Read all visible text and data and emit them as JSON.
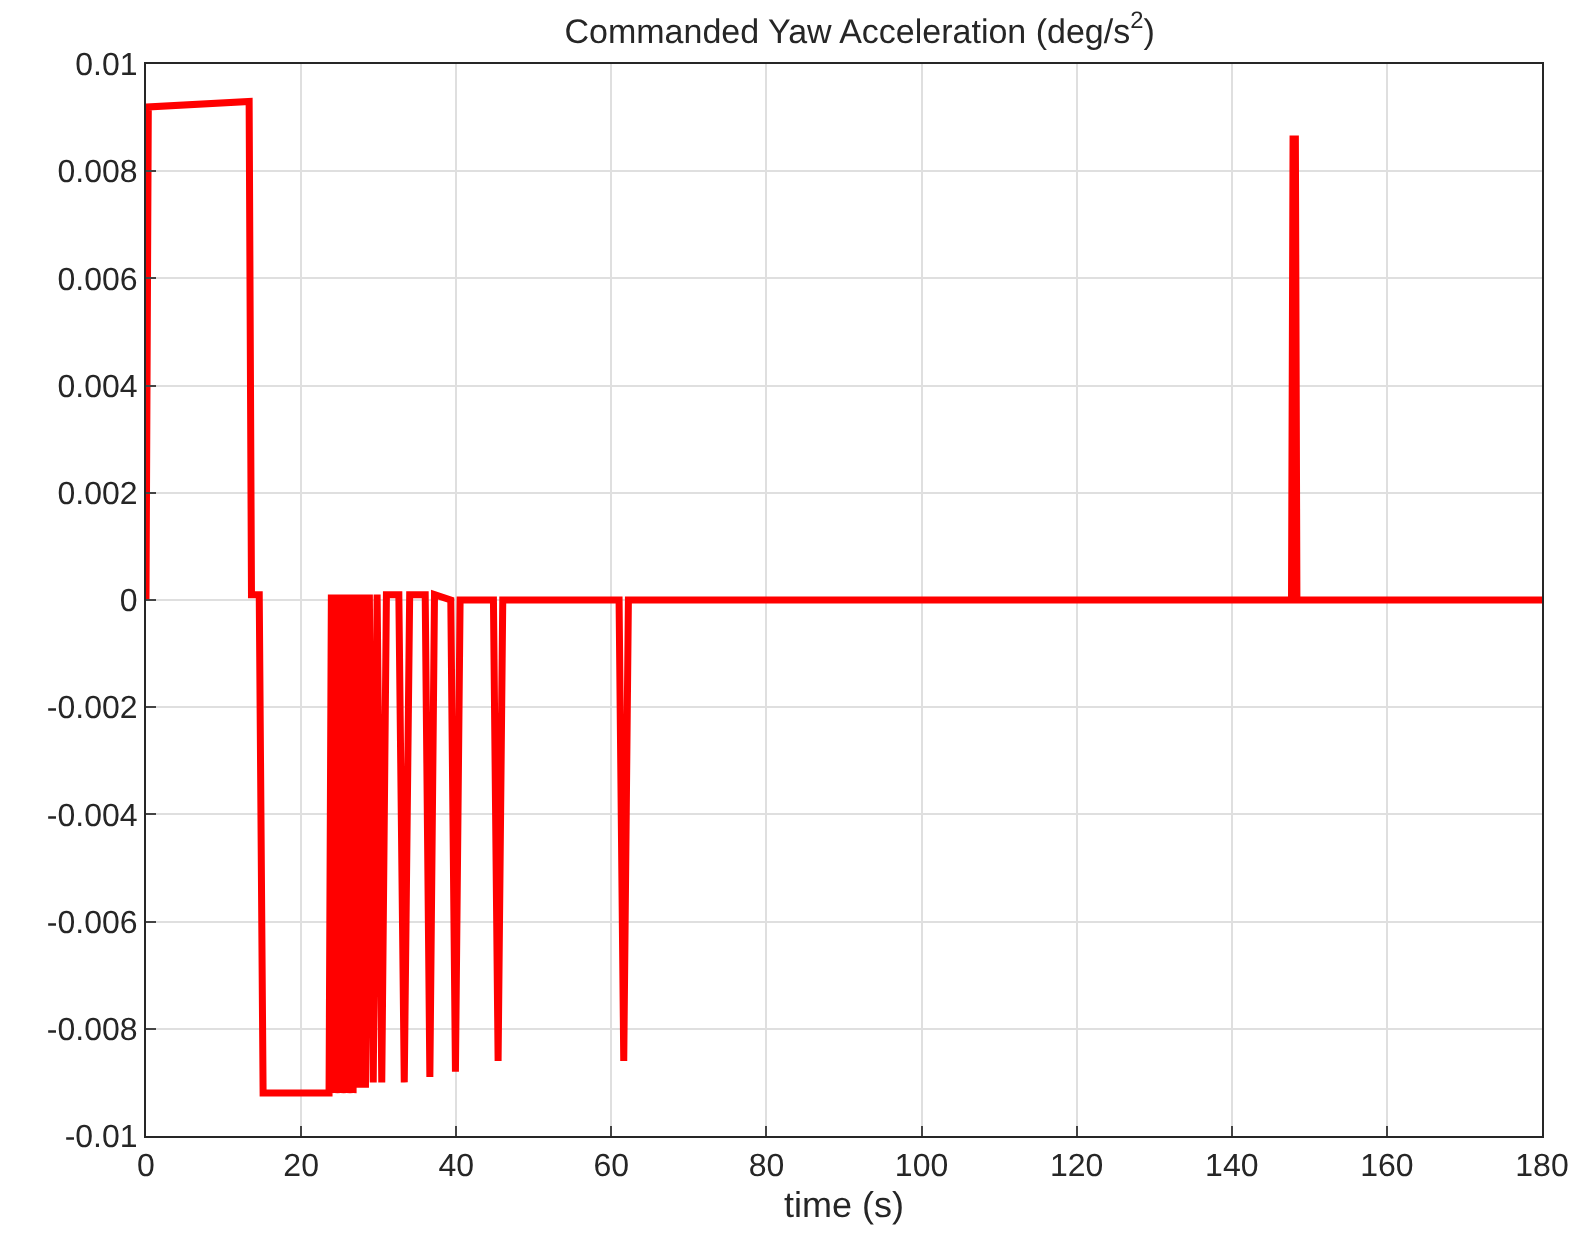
{
  "chart_data": {
    "type": "line",
    "title": "Commanded Yaw Acceleration (deg/s$^{2}$)",
    "xlabel": "time (s)",
    "x": [
      0,
      0.3,
      13.3,
      13.6,
      14.6,
      15.1,
      23.6,
      23.9,
      24.3,
      24.7,
      25.1,
      25.5,
      25.9,
      26.3,
      26.7,
      27.1,
      27.5,
      27.9,
      28.3,
      28.8,
      29.3,
      29.8,
      30.4,
      31.0,
      31.6,
      32.6,
      33.3,
      34.0,
      36.0,
      36.6,
      37.2,
      39.3,
      39.9,
      40.5,
      44.8,
      45.4,
      46.0,
      61.0,
      61.6,
      62.2,
      147.7,
      147.9,
      148.2,
      148.4,
      180
    ],
    "series": [
      {
        "color": "#ff0000",
        "values": [
          0,
          0.0092,
          0.0093,
          0.0001,
          0.0001,
          -0.0092,
          -0.0092,
          0.0001,
          -0.0092,
          0.0001,
          -0.0092,
          0.0001,
          -0.0092,
          0.0001,
          -0.0092,
          0.0001,
          -0.0091,
          0.0001,
          -0.0091,
          0.0001,
          -0.009,
          0.0001,
          -0.009,
          0.0001,
          0.0001,
          0.0001,
          -0.009,
          0.0001,
          0.0001,
          -0.0089,
          0.0001,
          0,
          -0.0088,
          0,
          0,
          -0.0086,
          0,
          0,
          -0.0086,
          0,
          0,
          0.0086,
          0.0086,
          0,
          0
        ]
      }
    ],
    "xlim": [
      0,
      180
    ],
    "xticks": [
      0,
      20,
      40,
      60,
      80,
      100,
      120,
      140,
      160,
      180
    ],
    "ylim": [
      -0.01,
      0.01
    ],
    "yticks": [
      -0.01,
      -0.008,
      -0.006,
      -0.004,
      -0.002,
      0,
      0.002,
      0.004,
      0.006,
      0.008,
      0.01
    ],
    "grid": true,
    "marker": "none",
    "line_style": "solid"
  }
}
